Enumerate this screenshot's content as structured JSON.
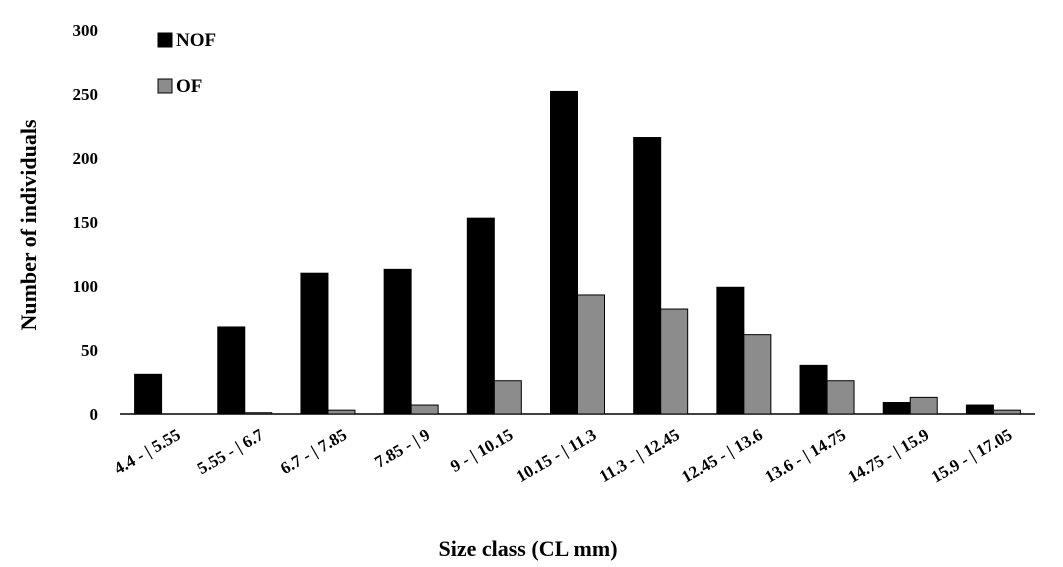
{
  "chart_data": {
    "type": "bar",
    "xlabel": "Size class (CL mm)",
    "ylabel": "Number of individuals",
    "ylim": [
      0,
      300
    ],
    "yticks": [
      0,
      50,
      100,
      150,
      200,
      250,
      300
    ],
    "grid": false,
    "legend_position": "top-left",
    "categories": [
      "4.4 - | 5.55",
      "5.55 - | 6.7",
      "6.7 - | 7.85",
      "7.85 - | 9",
      "9 - | 10.15",
      "10.15 - | 11.3",
      "11.3 - | 12.45",
      "12.45 - | 13.6",
      "13.6 - | 14.75",
      "14.75 - | 15.9",
      "15.9 - | 17.05"
    ],
    "series": [
      {
        "name": "NOF",
        "color": "#000000",
        "values": [
          31,
          68,
          110,
          113,
          153,
          252,
          216,
          99,
          38,
          9,
          7
        ]
      },
      {
        "name": "OF",
        "color": "#8c8c8c",
        "values": [
          0,
          1,
          3,
          7,
          26,
          93,
          82,
          62,
          26,
          13,
          3
        ]
      }
    ]
  }
}
